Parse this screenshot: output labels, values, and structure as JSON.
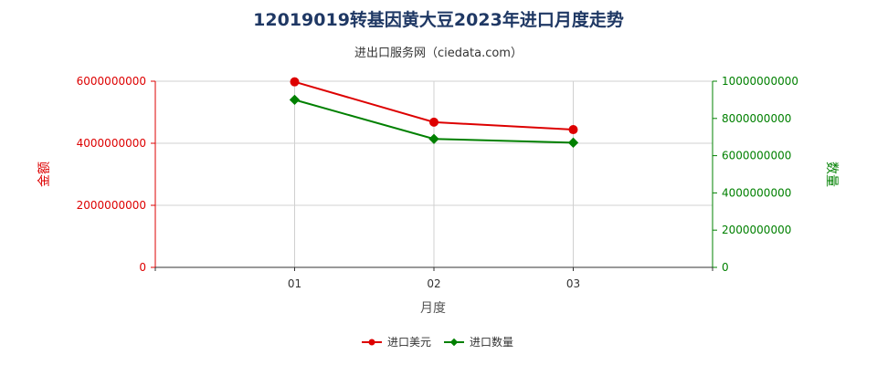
{
  "colors": {
    "left": "#dd0000",
    "right": "#008000",
    "title": "#1f3864"
  },
  "chart_data": {
    "type": "line",
    "title": "12019019转基因黄大豆2023年进口月度走势",
    "subtitle": "进出口服务网（ciedata.com）",
    "xlabel": "月度",
    "ylabel_left": "金额",
    "ylabel_right": "数量",
    "categories": [
      "01",
      "02",
      "03"
    ],
    "ylim_left": [
      0,
      6000000000
    ],
    "ylim_right": [
      0,
      10000000000
    ],
    "yticks_left": [
      "0",
      "2000000000",
      "4000000000",
      "6000000000"
    ],
    "yticks_right": [
      "0",
      "2000000000",
      "4000000000",
      "6000000000",
      "8000000000",
      "10000000000"
    ],
    "grid": true,
    "legend_position": "bottom",
    "series": [
      {
        "name": "进口美元",
        "axis": "left",
        "color": "#dd0000",
        "values": [
          5980000000,
          4680000000,
          4440000000
        ]
      },
      {
        "name": "进口数量",
        "axis": "right",
        "color": "#008000",
        "values": [
          9000000000,
          6900000000,
          6700000000
        ]
      }
    ]
  }
}
